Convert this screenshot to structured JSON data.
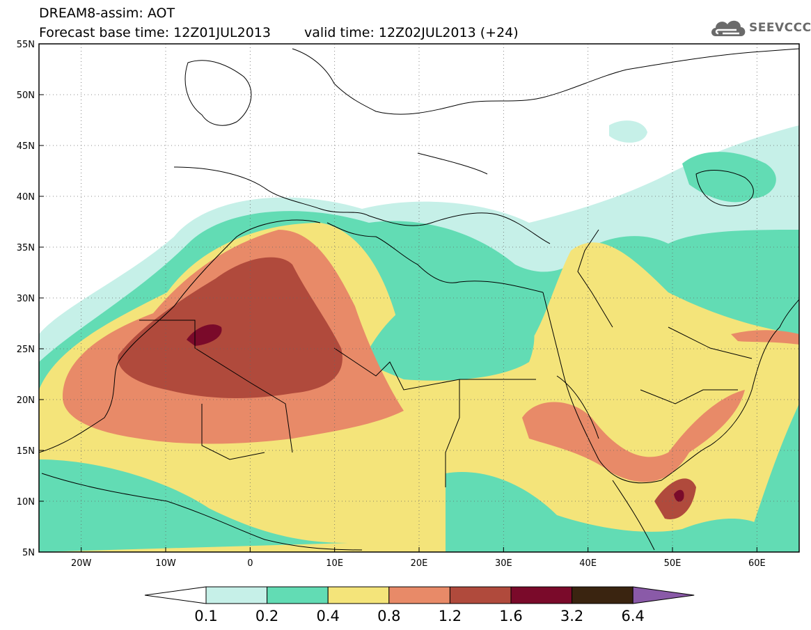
{
  "header": {
    "title_line1": "DREAM8-assim: AOT",
    "base_time": "Forecast base time: 12Z01JUL2013",
    "valid_time": "valid time: 12Z02JUL2013 (+24)",
    "logo_text": "SEEVCCC",
    "logo_icon": "cloud-icon"
  },
  "map": {
    "lon_range": [
      -25,
      65
    ],
    "lat_range": [
      5,
      55
    ],
    "lat_ticks": [
      "5N",
      "10N",
      "15N",
      "20N",
      "25N",
      "30N",
      "35N",
      "40N",
      "45N",
      "50N",
      "55N"
    ],
    "lon_ticks": [
      "20W",
      "10W",
      "0",
      "10E",
      "20E",
      "30E",
      "40E",
      "50E",
      "60E"
    ],
    "grid": "dotted",
    "dust_colors": {
      "0.1-0.2": "#c6f0e8",
      "0.2-0.4": "#62dcb4",
      "0.4-0.8": "#f4e47a",
      "0.8-1.2": "#e88a68",
      "1.2-1.6": "#b04a3c",
      "1.6-3.2": "#7a0a2a",
      "3.2-6.4": "#3a2410",
      "over-6.4": "#8a5aa8"
    }
  },
  "colorbar": {
    "labels": [
      "0.1",
      "0.2",
      "0.4",
      "0.8",
      "1.2",
      "1.6",
      "3.2",
      "6.4"
    ],
    "colors": [
      "#c6f0e8",
      "#62dcb4",
      "#f4e47a",
      "#e88a68",
      "#b04a3c",
      "#7a0a2a",
      "#3a2410"
    ],
    "low_color": "#ffffff",
    "high_color": "#8a5aa8"
  }
}
